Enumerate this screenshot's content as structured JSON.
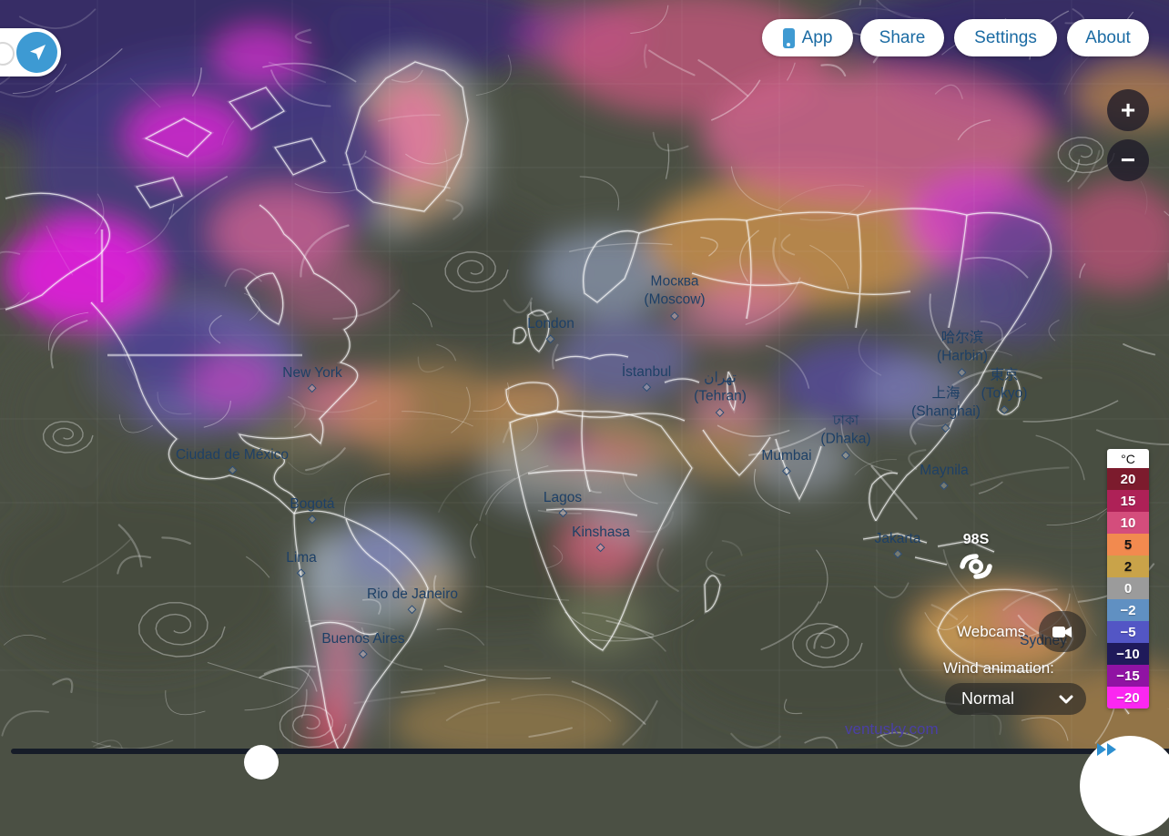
{
  "header": {
    "buttons": [
      {
        "label": "App",
        "icon": "smartphone-icon"
      },
      {
        "label": "Share"
      },
      {
        "label": "Settings"
      },
      {
        "label": "About"
      }
    ]
  },
  "controls": {
    "zoom_in": "+",
    "zoom_out": "−",
    "locate_icon": "navigation-arrow-icon"
  },
  "legend": {
    "unit": "°C",
    "stops": [
      {
        "label": "20",
        "color": "#7c1b2d",
        "text": "#ffffff"
      },
      {
        "label": "15",
        "color": "#ae2157",
        "text": "#ffffff"
      },
      {
        "label": "10",
        "color": "#d44d7c",
        "text": "#ffffff"
      },
      {
        "label": "5",
        "color": "#f28a4f",
        "text": "#141414"
      },
      {
        "label": "2",
        "color": "#c9a349",
        "text": "#141414"
      },
      {
        "label": "0",
        "color": "#9b9b9b",
        "text": "#ffffff"
      },
      {
        "label": "−2",
        "color": "#6090c2",
        "text": "#ffffff"
      },
      {
        "label": "−5",
        "color": "#5356c5",
        "text": "#ffffff"
      },
      {
        "label": "−10",
        "color": "#1f1a5a",
        "text": "#ffffff"
      },
      {
        "label": "−15",
        "color": "#9013a3",
        "text": "#ffffff"
      },
      {
        "label": "−20",
        "color": "#fb27f1",
        "text": "#ffffff"
      }
    ]
  },
  "map": {
    "cities": [
      {
        "label": "Москва\n(Moscow)"
      },
      {
        "label": "London"
      },
      {
        "label": "İstanbul"
      },
      {
        "label": "تهران\n(Tehran)"
      },
      {
        "label": "哈尔滨\n(Harbin)"
      },
      {
        "label": "東京\n(Tokyo)"
      },
      {
        "label": "上海\n(Shanghai)"
      },
      {
        "label": "ঢাকা\n(Dhaka)"
      },
      {
        "label": "Mumbai"
      },
      {
        "label": "Maynila"
      },
      {
        "label": "Jakarta"
      },
      {
        "label": "Sydney"
      },
      {
        "label": "New York"
      },
      {
        "label": "Ciudad de México"
      },
      {
        "label": "Bogotá"
      },
      {
        "label": "Lima"
      },
      {
        "label": "Rio de Janeiro"
      },
      {
        "label": "Buenos Aires"
      },
      {
        "label": "Lagos"
      },
      {
        "label": "Kinshasa"
      }
    ],
    "storm": {
      "label": "98S"
    }
  },
  "panel": {
    "webcams_label": "Webcams",
    "wind_label": "Wind animation:",
    "wind_value": "Normal"
  },
  "watermark": {
    "text": "ventusky.com"
  }
}
